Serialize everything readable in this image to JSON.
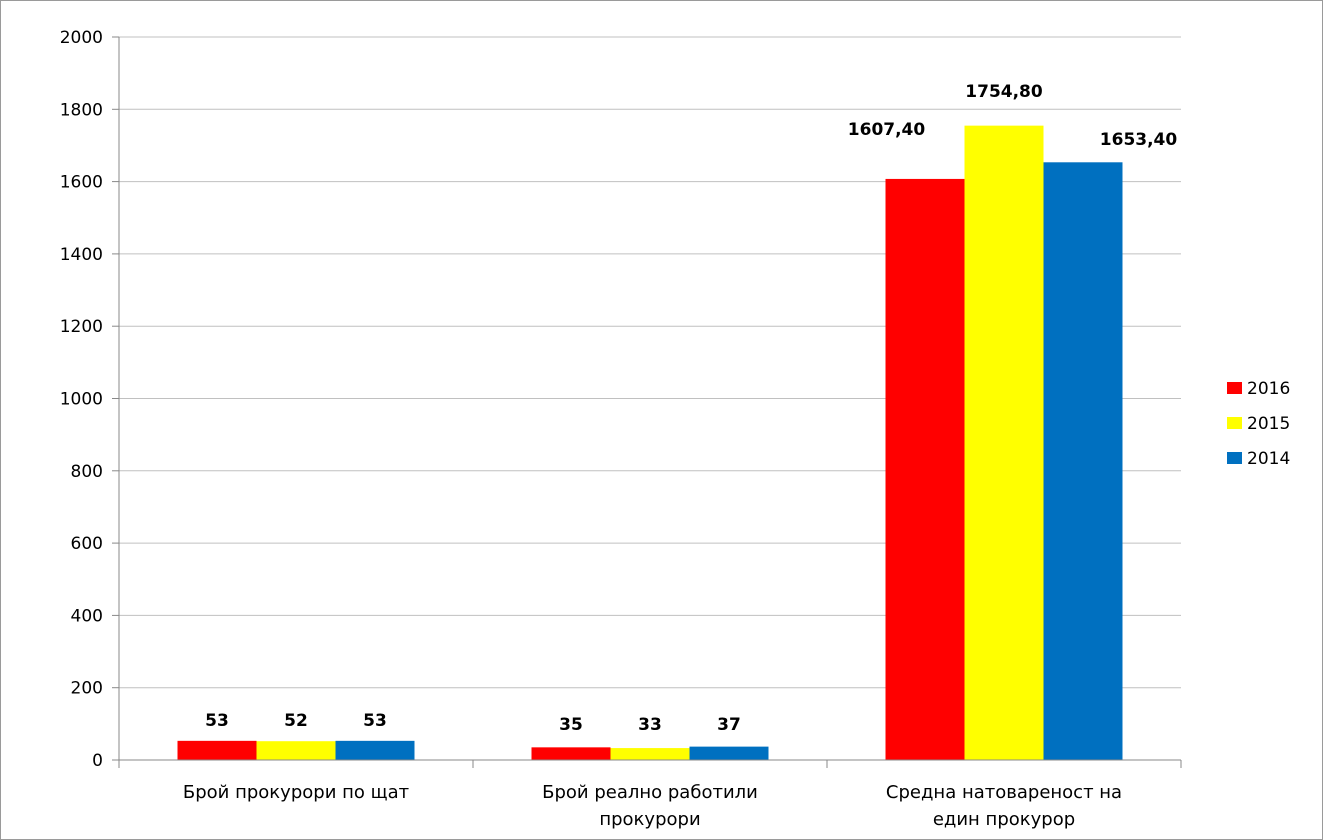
{
  "chart_data": {
    "type": "bar",
    "categories": [
      [
        "Брой прокурори по щат"
      ],
      [
        "Брой реално работили",
        "прокурори"
      ],
      [
        "Средна натовареност на",
        "един прокурор"
      ]
    ],
    "series": [
      {
        "name": "2016",
        "color": "#ff0000",
        "values": [
          53,
          35,
          1607.4
        ],
        "labels": [
          "53",
          "35",
          "1607,40"
        ]
      },
      {
        "name": "2015",
        "color": "#ffff00",
        "values": [
          52,
          33,
          1754.8
        ],
        "labels": [
          "52",
          "33",
          "1754,80"
        ]
      },
      {
        "name": "2014",
        "color": "#0070c0",
        "values": [
          53,
          37,
          1653.4
        ],
        "labels": [
          "53",
          "37",
          "1653,40"
        ]
      }
    ],
    "ylim": [
      0,
      2000
    ],
    "yticks": [
      0,
      200,
      400,
      600,
      800,
      1000,
      1200,
      1400,
      1600,
      1800,
      2000
    ],
    "grid": true,
    "legend_position": "right"
  }
}
